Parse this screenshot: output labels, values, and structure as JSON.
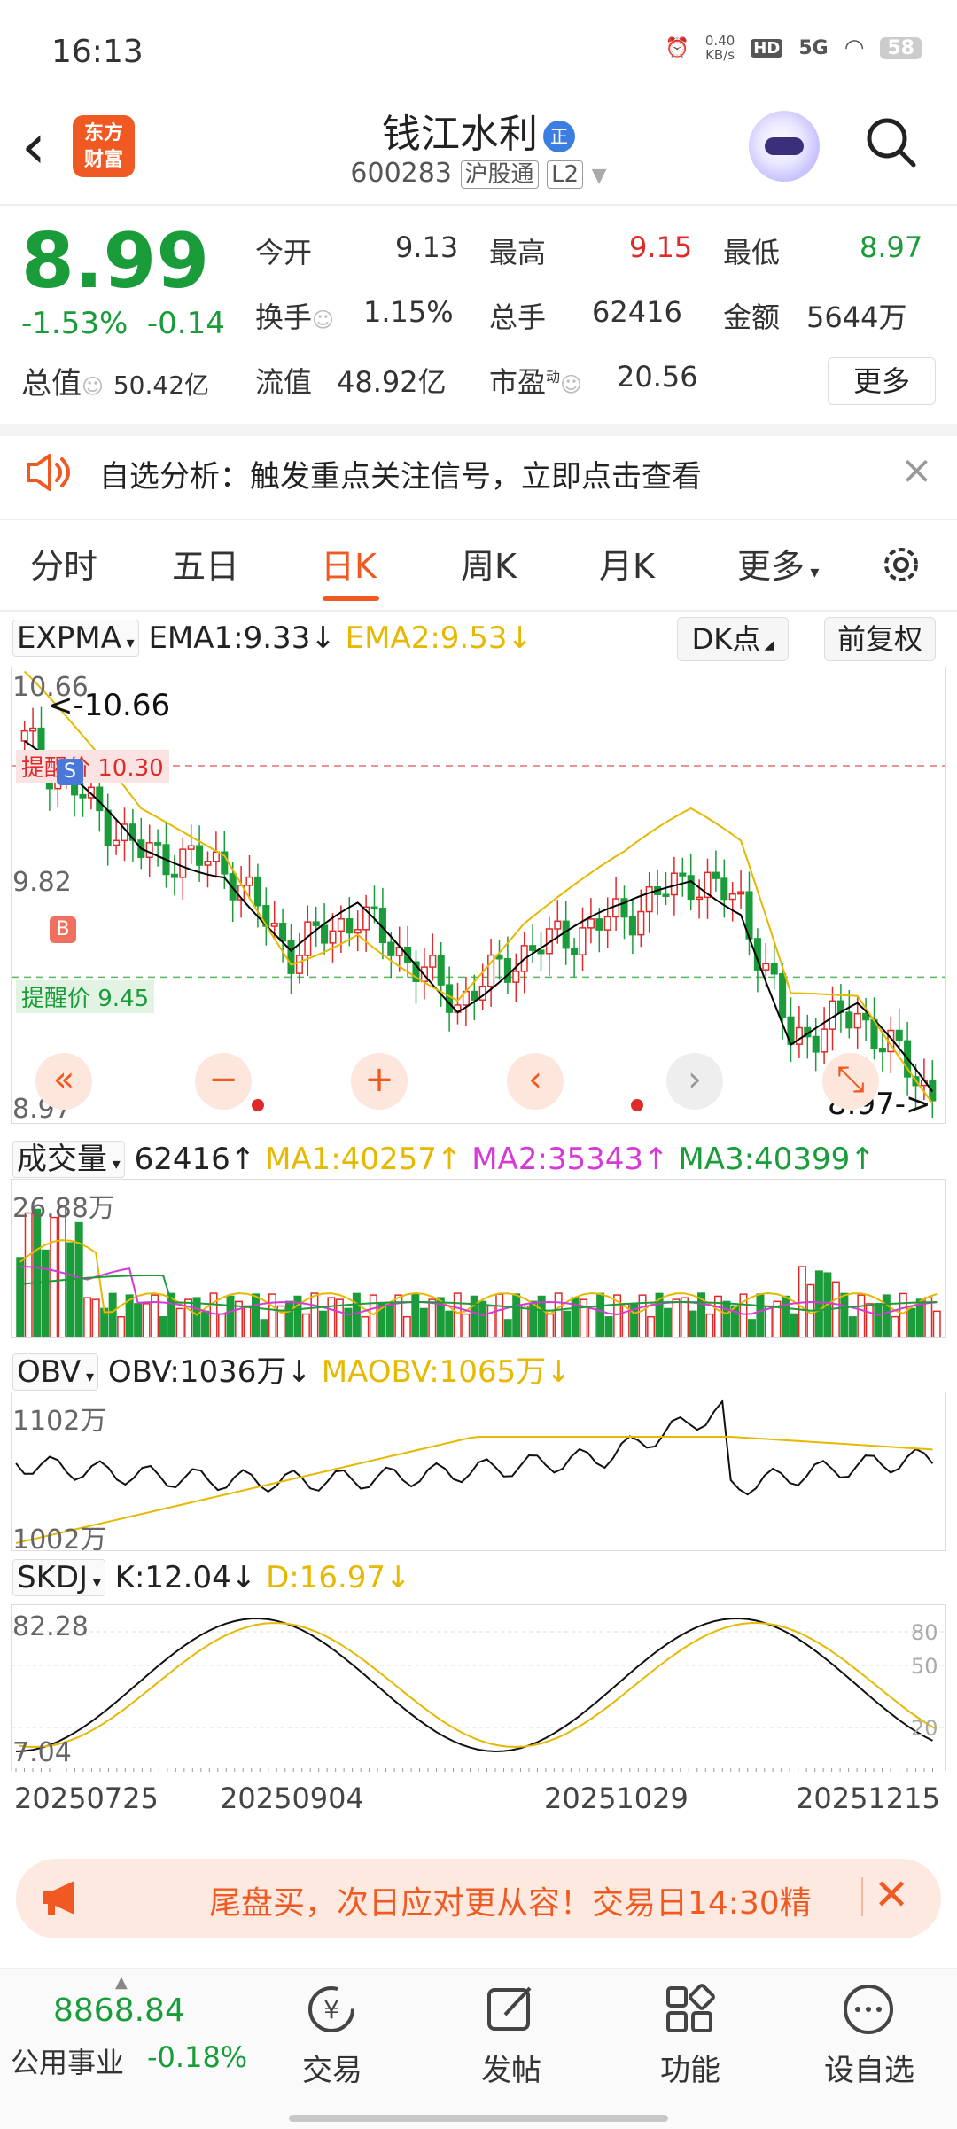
{
  "status_bar": {
    "time": "16:13",
    "net_speed_top": "0.40",
    "net_speed_unit": "KB/s",
    "hd": "HD",
    "signal": "5G",
    "battery": "58"
  },
  "header": {
    "logo_text_1": "东方",
    "logo_text_2": "财富",
    "stock_name": "钱江水利",
    "name_tag": "正",
    "stock_code": "600283",
    "market_tag": "沪股通",
    "level_tag": "L2"
  },
  "quote": {
    "price": "8.99",
    "change_pct": "-1.53%",
    "change": "-0.14",
    "open_label": "今开",
    "open": "9.13",
    "high_label": "最高",
    "high": "9.15",
    "low_label": "最低",
    "low": "8.97",
    "turnover_label": "换手",
    "turnover": "1.15%",
    "volume_label": "总手",
    "volume": "62416",
    "amount_label": "金额",
    "amount": "5644万",
    "mcap_label": "总值",
    "mcap": "50.42亿",
    "float_label": "流值",
    "float_cap": "48.92亿",
    "pe_label": "市盈",
    "pe_sup": "动",
    "pe": "20.56",
    "more_label": "更多"
  },
  "notice": {
    "text": "自选分析：触发重点关注信号，立即点击查看"
  },
  "tabs": [
    {
      "label": "分时"
    },
    {
      "label": "五日"
    },
    {
      "label": "日K"
    },
    {
      "label": "周K"
    },
    {
      "label": "月K"
    },
    {
      "label": "更多"
    }
  ],
  "kline": {
    "indicator": "EXPMA",
    "ema1": "EMA1:9.33",
    "ema1_arrow": "↓",
    "ema2": "EMA2:9.53",
    "ema2_arrow": "↓",
    "dk_label": "DK点",
    "adjust_label": "前复权",
    "y_top": "10.66",
    "y_mid": "9.82",
    "y_bottom": "8.97",
    "max_marker": "<-10.66",
    "min_marker": "8.97->",
    "alert_high": "提醒价 10.30",
    "alert_low": "提醒价 9.45",
    "sell_badge": "S",
    "buy_badge": "B"
  },
  "volume_panel": {
    "indicator": "成交量",
    "value": "62416",
    "arrow": "↑",
    "ma1": "MA1:40257",
    "ma1_arrow": "↑",
    "ma2": "MA2:35343",
    "ma2_arrow": "↑",
    "ma3": "MA3:40399",
    "ma3_arrow": "↑",
    "y_top": "26.88万"
  },
  "obv_panel": {
    "indicator": "OBV",
    "obv": "OBV:1036万",
    "obv_arrow": "↓",
    "maobv": "MAOBV:1065万",
    "maobv_arrow": "↓",
    "y_top": "1102万",
    "y_bottom": "1002万"
  },
  "skdj_panel": {
    "indicator": "SKDJ",
    "k": "K:12.04",
    "k_arrow": "↓",
    "d": "D:16.97",
    "d_arrow": "↓",
    "y_top": "82.28",
    "y_bottom": "7.04",
    "lvl80": "80",
    "lvl50": "50",
    "lvl20": "20"
  },
  "dates": [
    "20250725",
    "20250904",
    "20251029",
    "20251215"
  ],
  "promo": {
    "text": "尾盘买，次日应对更从容！交易日14:30精"
  },
  "bottom": {
    "index_value": "8868.84",
    "index_name": "公用事业",
    "index_change": "-0.18%",
    "nav": [
      {
        "label": "交易"
      },
      {
        "label": "发帖"
      },
      {
        "label": "功能"
      },
      {
        "label": "设自选"
      }
    ]
  },
  "colors": {
    "up": "#e02a2a",
    "down": "#1a9c3a",
    "accent": "#f05a22",
    "ema1": "#000000",
    "ema2": "#e6b800",
    "ma1": "#e6b800",
    "ma2": "#d63ad6",
    "ma3": "#1a9c3a"
  }
}
